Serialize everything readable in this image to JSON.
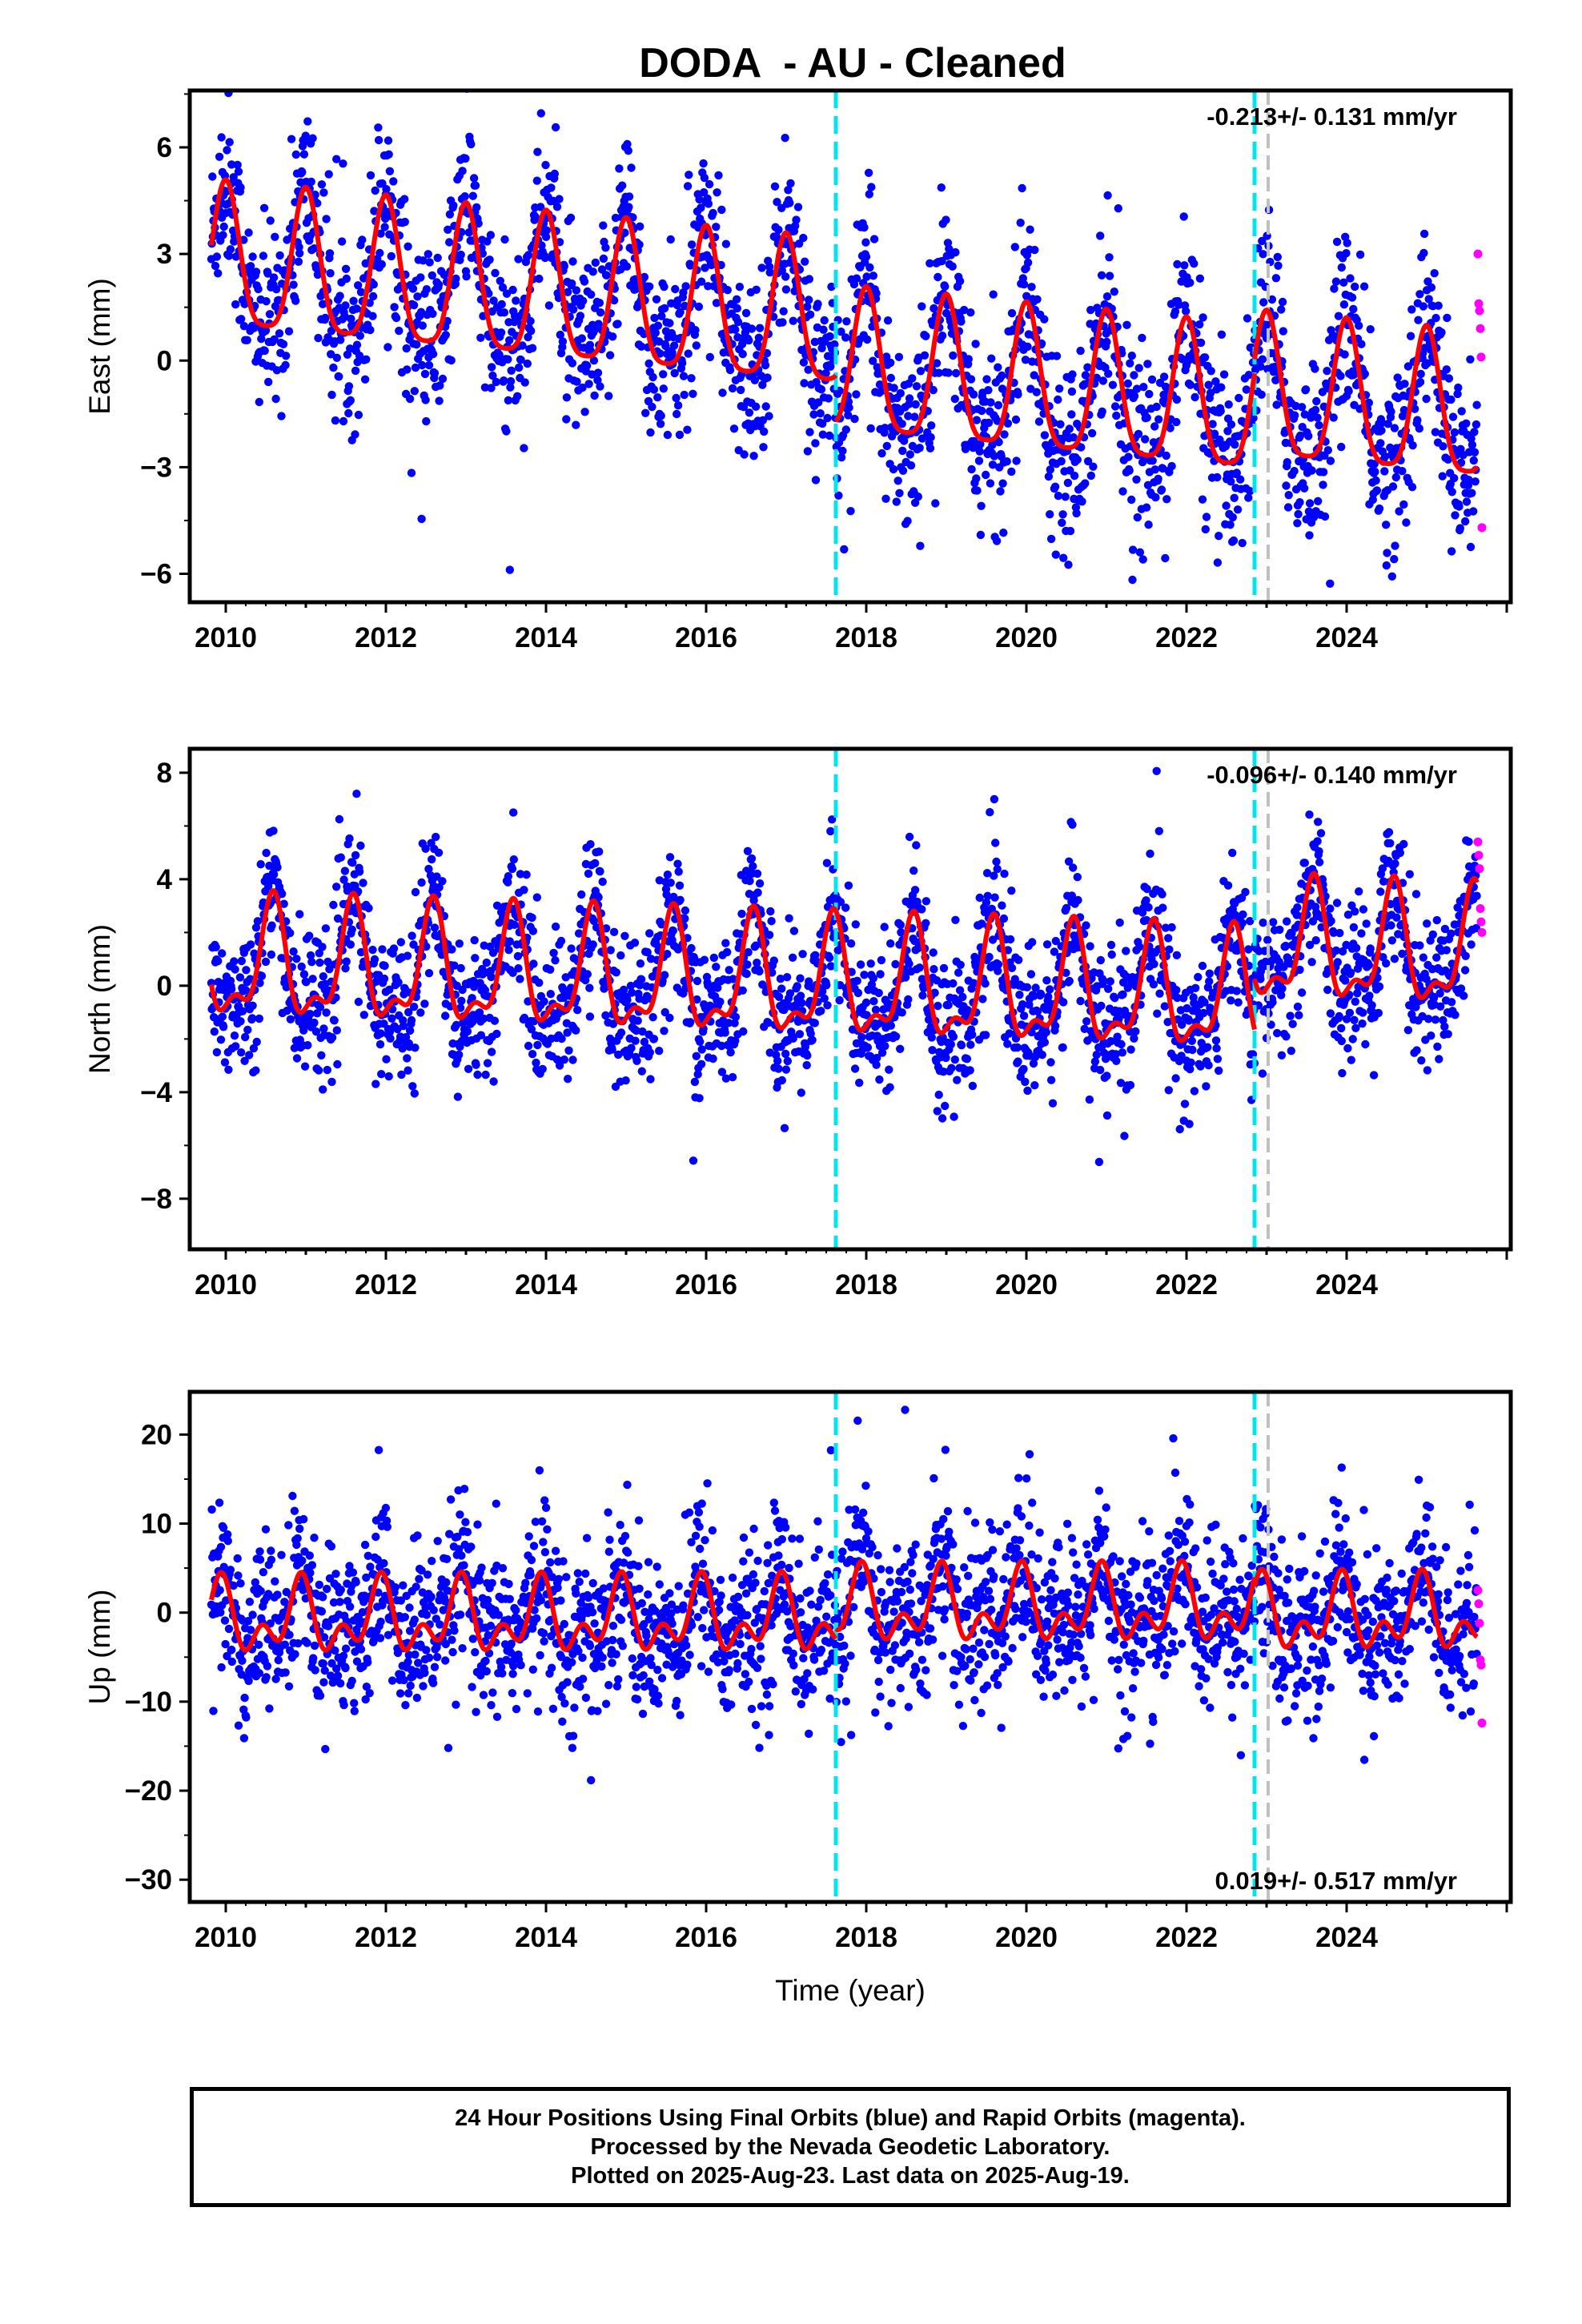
{
  "page_title": "DODA  - AU - Cleaned",
  "colors": {
    "final": "#0000ff",
    "rapid": "#ff00ff",
    "model": "#ff0000",
    "equipment_change": "#00e5ee",
    "other_event": "#c0c0c0"
  },
  "footer": {
    "line1": "24 Hour Positions Using Final Orbits (blue) and Rapid Orbits (magenta).",
    "line2": "Processed by the Nevada Geodetic Laboratory.",
    "line3": "Plotted on 2025-Aug-23. Last data on 2025-Aug-19."
  },
  "chart_data": [
    {
      "type": "scatter",
      "component": "east",
      "ylabel": "East (mm)",
      "xlabel": "",
      "rate_text": "-0.213+/- 0.131 mm/yr",
      "rate_position": "top-right",
      "xlim": [
        2009.55,
        2026.05
      ],
      "ylim": [
        -6.8,
        7.6
      ],
      "xticks": [
        "2010",
        "2012",
        "2014",
        "2016",
        "2018",
        "2020",
        "2022",
        "2024"
      ],
      "yticks": [
        "−6",
        "−3",
        "0",
        "3",
        "6"
      ],
      "grid": false,
      "events_equipment": [
        2017.62,
        2022.85
      ],
      "events_other": [
        2023.02
      ],
      "model": {
        "segments": [
          [
            2009.82,
            2017.62
          ],
          [
            2017.62,
            2022.85
          ],
          [
            2022.85,
            2025.63
          ]
        ],
        "offsets": [
          1.0,
          -0.3,
          0.1
        ],
        "rate": -0.213,
        "t0": 2017.7,
        "annual_amp": 2.0,
        "annual_phase_year": 0.0,
        "semiannual_amp": 0.45,
        "semiannual_phase_year": 0.0
      },
      "scatter_sd": 1.25,
      "final_span": [
        2009.82,
        2025.63
      ],
      "rapid_x": [
        2025.64,
        2025.65,
        2025.66,
        2025.67,
        2025.68,
        2025.69
      ],
      "rapid_y": [
        3.0,
        1.6,
        1.4,
        0.9,
        0.1,
        -4.7
      ]
    },
    {
      "type": "scatter",
      "component": "north",
      "ylabel": "North (mm)",
      "xlabel": "",
      "rate_text": "-0.096+/- 0.140 mm/yr",
      "rate_position": "top-right",
      "xlim": [
        2009.55,
        2026.05
      ],
      "ylim": [
        -9.9,
        8.9
      ],
      "xticks": [
        "2010",
        "2012",
        "2014",
        "2016",
        "2018",
        "2020",
        "2022",
        "2024"
      ],
      "yticks": [
        "−8",
        "−4",
        "0",
        "4",
        "8"
      ],
      "grid": false,
      "events_equipment": [
        2017.62,
        2022.85
      ],
      "events_other": [
        2023.02
      ],
      "model": {
        "segments": [
          [
            2009.82,
            2017.62
          ],
          [
            2017.62,
            2022.85
          ],
          [
            2022.85,
            2025.63
          ]
        ],
        "offsets": [
          0.0,
          0.0,
          1.9
        ],
        "rate": -0.096,
        "t0": 2017.7,
        "annual_amp": 2.0,
        "annual_phase_year": 0.58,
        "semiannual_amp": 0.9,
        "semiannual_phase_year": 0.1
      },
      "scatter_sd": 1.35,
      "final_span": [
        2009.82,
        2025.63
      ],
      "rapid_x": [
        2025.64,
        2025.65,
        2025.66,
        2025.67,
        2025.68,
        2025.69
      ],
      "rapid_y": [
        5.4,
        4.9,
        4.4,
        2.9,
        2.4,
        2.0
      ]
    },
    {
      "type": "scatter",
      "component": "up",
      "ylabel": "Up (mm)",
      "xlabel": "Time (year)",
      "rate_text": "0.019+/- 0.517 mm/yr",
      "rate_position": "bottom-right",
      "xlim": [
        2009.55,
        2026.05
      ],
      "ylim": [
        -32.5,
        24.8
      ],
      "xticks": [
        "2010",
        "2012",
        "2014",
        "2016",
        "2018",
        "2020",
        "2022",
        "2024"
      ],
      "yticks": [
        "−30",
        "−20",
        "−10",
        "0",
        "10",
        "20"
      ],
      "grid": false,
      "events_equipment": [
        2017.62,
        2022.85
      ],
      "events_other": [
        2023.02
      ],
      "model": {
        "segments": [
          [
            2009.82,
            2017.62
          ],
          [
            2017.62,
            2022.85
          ],
          [
            2022.85,
            2025.63
          ]
        ],
        "offsets": [
          -0.7,
          0.4,
          -0.6
        ],
        "rate": 0.019,
        "t0": 2017.7,
        "annual_amp": 3.0,
        "annual_phase_year": 0.92,
        "semiannual_amp": 2.4,
        "semiannual_phase_year": 0.45
      },
      "scatter_sd": 4.6,
      "final_span": [
        2009.82,
        2025.63
      ],
      "rapid_x": [
        2025.64,
        2025.65,
        2025.66,
        2025.67,
        2025.68,
        2025.69
      ],
      "rapid_y": [
        2.5,
        1.0,
        -1.2,
        -5.3,
        -5.9,
        -12.4
      ]
    }
  ]
}
